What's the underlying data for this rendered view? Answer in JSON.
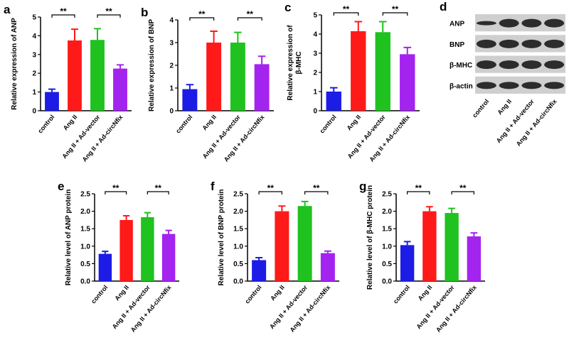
{
  "chart_data": [
    {
      "type": "bar",
      "panel": "a",
      "ylabel": "Relative expression of ANP",
      "categories": [
        "control",
        "Ang II",
        "Ang II + Ad-vector",
        "Ang II + Ad-circNfix"
      ],
      "values": [
        1.0,
        3.75,
        3.78,
        2.25
      ],
      "errors": [
        0.15,
        0.6,
        0.6,
        0.2
      ],
      "colors": [
        "#1c1ce6",
        "#ff1a1a",
        "#1fc21f",
        "#a324ee"
      ],
      "ylim": [
        0,
        5
      ],
      "yticks": [
        0,
        1,
        2,
        3,
        4,
        5
      ],
      "significance": [
        {
          "text": "**",
          "between": [
            "control",
            "Ang II"
          ]
        },
        {
          "text": "**",
          "between": [
            "Ang II + Ad-vector",
            "Ang II + Ad-circNfix"
          ]
        }
      ]
    },
    {
      "type": "bar",
      "panel": "b",
      "ylabel": "Relative expression of BNP",
      "categories": [
        "control",
        "Ang II",
        "Ang II + Ad-vector",
        "Ang II + Ad-circNfix"
      ],
      "values": [
        0.95,
        3.0,
        3.0,
        2.05
      ],
      "errors": [
        0.2,
        0.5,
        0.45,
        0.35
      ],
      "colors": [
        "#1c1ce6",
        "#ff1a1a",
        "#1fc21f",
        "#a324ee"
      ],
      "ylim": [
        0,
        4
      ],
      "yticks": [
        0,
        1,
        2,
        3,
        4
      ],
      "significance": [
        {
          "text": "**",
          "between": [
            "control",
            "Ang II"
          ]
        },
        {
          "text": "**",
          "between": [
            "Ang II + Ad-vector",
            "Ang II + Ad-circNfix"
          ]
        }
      ]
    },
    {
      "type": "bar",
      "panel": "c",
      "ylabel": [
        "Relative expression of",
        "β-MHC"
      ],
      "categories": [
        "control",
        "Ang II",
        "Ang II + Ad-vector",
        "Ang II + Ad-circNfix"
      ],
      "values": [
        1.0,
        4.15,
        4.1,
        2.95
      ],
      "errors": [
        0.2,
        0.5,
        0.55,
        0.35
      ],
      "colors": [
        "#1c1ce6",
        "#ff1a1a",
        "#1fc21f",
        "#a324ee"
      ],
      "ylim": [
        0,
        5
      ],
      "yticks": [
        0,
        1,
        2,
        3,
        4,
        5
      ],
      "significance": [
        {
          "text": "**",
          "between": [
            "control",
            "Ang II"
          ]
        },
        {
          "text": "**",
          "between": [
            "Ang II + Ad-vector",
            "Ang II + Ad-circNfix"
          ]
        }
      ]
    },
    {
      "type": "blot",
      "panel": "d",
      "rows": [
        "ANP",
        "BNP",
        "β-MHC",
        "β-actin"
      ],
      "categories": [
        "control",
        "Ang II",
        "Ang II + Ad-vector",
        "Ang II + Ad-circNfix"
      ]
    },
    {
      "type": "bar",
      "panel": "e",
      "ylabel": "Relative level of ANP protein",
      "categories": [
        "control",
        "Ang II",
        "Ang II + Ad-vector",
        "Ang II + Ad-circNfix"
      ],
      "values": [
        0.78,
        1.75,
        1.83,
        1.35
      ],
      "errors": [
        0.07,
        0.12,
        0.13,
        0.1
      ],
      "colors": [
        "#1c1ce6",
        "#ff1a1a",
        "#1fc21f",
        "#a324ee"
      ],
      "ylim": [
        0,
        2.5
      ],
      "yticks": [
        {
          "value": 0,
          "label": "0.0"
        },
        0.5,
        {
          "value": 1,
          "label": "1.0"
        },
        1.5,
        {
          "value": 2,
          "label": "2.0"
        },
        2.5
      ],
      "significance": [
        {
          "text": "**",
          "between": [
            "control",
            "Ang II"
          ]
        },
        {
          "text": "**",
          "between": [
            "Ang II + Ad-vector",
            "Ang II + Ad-circNfix"
          ]
        }
      ]
    },
    {
      "type": "bar",
      "panel": "f",
      "ylabel": "Relative level of BNP protein",
      "categories": [
        "control",
        "Ang II",
        "Ang II + Ad-vector",
        "Ang II + Ad-circNfix"
      ],
      "values": [
        0.6,
        2.0,
        2.15,
        0.8
      ],
      "errors": [
        0.07,
        0.15,
        0.13,
        0.06
      ],
      "colors": [
        "#1c1ce6",
        "#ff1a1a",
        "#1fc21f",
        "#a324ee"
      ],
      "ylim": [
        0,
        2.5
      ],
      "yticks": [
        {
          "value": 0,
          "label": "0.0"
        },
        0.5,
        {
          "value": 1,
          "label": "1.0"
        },
        1.5,
        {
          "value": 2,
          "label": "2.0"
        },
        2.5
      ],
      "significance": [
        {
          "text": "**",
          "between": [
            "control",
            "Ang II"
          ]
        },
        {
          "text": "**",
          "between": [
            "Ang II + Ad-vector",
            "Ang II + Ad-circNfix"
          ]
        }
      ]
    },
    {
      "type": "bar",
      "panel": "g",
      "ylabel": "Relative level of β-MHC protein",
      "categories": [
        "control",
        "Ang II",
        "Ang II + Ad-vector",
        "Ang II + Ad-circNfix"
      ],
      "values": [
        1.03,
        2.0,
        1.95,
        1.28
      ],
      "errors": [
        0.1,
        0.13,
        0.13,
        0.1
      ],
      "colors": [
        "#1c1ce6",
        "#ff1a1a",
        "#1fc21f",
        "#a324ee"
      ],
      "ylim": [
        0,
        2.5
      ],
      "yticks": [
        {
          "value": 0,
          "label": "0.0"
        },
        0.5,
        {
          "value": 1,
          "label": "1.0"
        },
        1.5,
        {
          "value": 2,
          "label": "2.0"
        },
        2.5
      ],
      "significance": [
        {
          "text": "**",
          "between": [
            "control",
            "Ang II"
          ]
        },
        {
          "text": "**",
          "between": [
            "Ang II + Ad-vector",
            "Ang II + Ad-circNfix"
          ]
        }
      ]
    }
  ]
}
